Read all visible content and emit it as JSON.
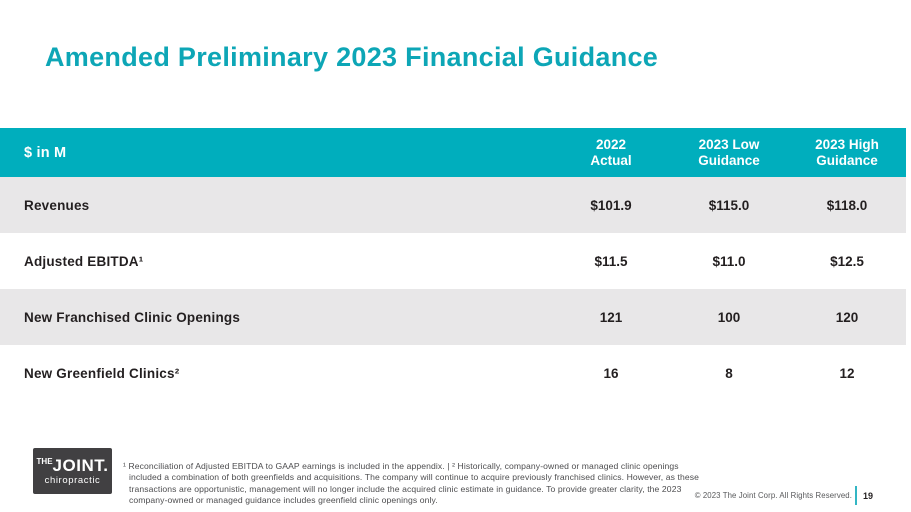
{
  "slide": {
    "title": "Amended Preliminary 2023 Financial Guidance",
    "page_number": "19",
    "copyright": "© 2023 The Joint Corp. All Rights Reserved."
  },
  "table": {
    "corner_header": "$ in M",
    "column_headers": [
      "2022\nActual",
      "2023 Low\nGuidance",
      "2023 High\nGuidance"
    ],
    "rows": [
      {
        "label": "Revenues",
        "values": [
          "$101.9",
          "$115.0",
          "$118.0"
        ]
      },
      {
        "label": "Adjusted EBITDA¹",
        "values": [
          "$11.5",
          "$11.0",
          "$12.5"
        ]
      },
      {
        "label": "New Franchised Clinic Openings",
        "values": [
          "121",
          "100",
          "120"
        ]
      },
      {
        "label": "New Greenfield Clinics²",
        "values": [
          "16",
          "8",
          "12"
        ]
      }
    ]
  },
  "footnote": "¹ Reconciliation of Adjusted EBITDA to GAAP earnings is included in the appendix. | ² Historically, company-owned or managed clinic openings included a combination of both greenfields and acquisitions. The company will continue to acquire previously franchised clinics. However, as these transactions are opportunistic, management will no longer include the acquired clinic estimate in guidance. To provide greater clarity, the 2023 company-owned or managed guidance includes greenfield clinic openings only.",
  "logo": {
    "the": "THE",
    "joint": "JOINT.",
    "tagline": "chiropractic"
  },
  "colors": {
    "header_teal": "#00AEBD",
    "title_teal": "#0DA6B6",
    "row_gray": "#E8E7E8",
    "logo_bg": "#414042",
    "divider_teal": "#33B6C4"
  }
}
